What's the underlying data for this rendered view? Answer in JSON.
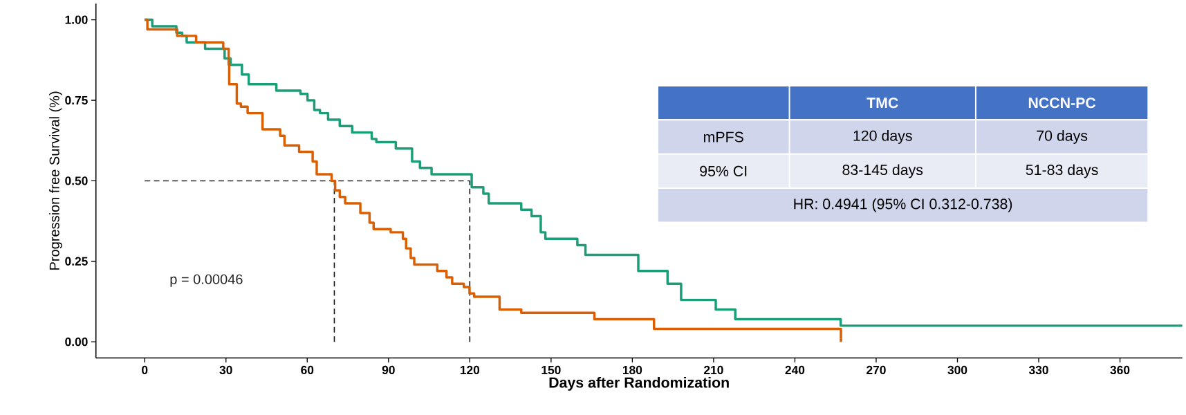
{
  "chart_data": {
    "type": "step",
    "xlabel": "Days after Randomization",
    "ylabel": "Progression free Survival (%)",
    "series": [
      {
        "color": "#1b9e77",
        "x": [
          0,
          2.8,
          11.7,
          13.8,
          15.5,
          22.3,
          29.5,
          31.7,
          35.9,
          38.4,
          48.6,
          57.5,
          60.1,
          62.6,
          64.7,
          67.7,
          72,
          76.6,
          83.8,
          85.5,
          92.7,
          98.7,
          101.6,
          105.9,
          120.7,
          125,
          127,
          139,
          142.8,
          146.2,
          147.9,
          159.7,
          162.7,
          182.2,
          193,
          198,
          210.8,
          218,
          256.9,
          383
        ],
        "values": [
          1.0,
          0.98,
          0.96,
          0.95,
          0.93,
          0.91,
          0.88,
          0.86,
          0.83,
          0.8,
          0.78,
          0.77,
          0.75,
          0.72,
          0.71,
          0.69,
          0.67,
          0.65,
          0.63,
          0.62,
          0.6,
          0.56,
          0.54,
          0.52,
          0.48,
          0.46,
          0.43,
          0.41,
          0.39,
          0.34,
          0.32,
          0.3,
          0.27,
          0.22,
          0.18,
          0.13,
          0.1,
          0.07,
          0.05,
          0.05
        ]
      },
      {
        "color": "#d95f02",
        "x": [
          0,
          1,
          12,
          19,
          29,
          31,
          31.2,
          34,
          35.5,
          38,
          43.5,
          50,
          51.6,
          57,
          62,
          63.5,
          69,
          70.3,
          72,
          74,
          79.6,
          83,
          84.5,
          90.8,
          95.3,
          96.5,
          98.2,
          99.5,
          108,
          111.4,
          113.5,
          117.8,
          119.9,
          121.6,
          131,
          139,
          166,
          188,
          257
        ],
        "values": [
          1.0,
          0.97,
          0.95,
          0.93,
          0.91,
          0.86,
          0.8,
          0.74,
          0.73,
          0.71,
          0.66,
          0.64,
          0.61,
          0.59,
          0.56,
          0.52,
          0.5,
          0.47,
          0.45,
          0.43,
          0.4,
          0.37,
          0.35,
          0.34,
          0.32,
          0.29,
          0.26,
          0.24,
          0.22,
          0.2,
          0.18,
          0.17,
          0.15,
          0.14,
          0.1,
          0.09,
          0.07,
          0.04,
          0
        ]
      }
    ],
    "xlim": [
      -18,
      383
    ],
    "xticks": [
      0,
      30,
      60,
      90,
      120,
      150,
      180,
      210,
      240,
      270,
      300,
      330,
      360
    ],
    "ylim": [
      -0.05,
      1.05
    ],
    "yticks": [
      {
        "value": 0,
        "label": "0.00"
      },
      {
        "value": 0.25,
        "label": "0.25"
      },
      {
        "value": 0.5,
        "label": "0.50"
      },
      {
        "value": 0.75,
        "label": "0.75"
      },
      {
        "value": 1,
        "label": "1.00"
      }
    ],
    "ref_lines": [
      {
        "axis": "y",
        "value": 0.5,
        "color": "#444444",
        "line_style": "dashed"
      },
      {
        "axis": "x",
        "value": 70,
        "color": "#111111",
        "line_style": "dashed"
      },
      {
        "axis": "x",
        "value": 120,
        "color": "#111111",
        "line_style": "dashed"
      }
    ],
    "annotations": [
      "p = 0.00046",
      "TMC",
      "NCCN-PC",
      "mPFS",
      "120 days",
      "70 days",
      "95% CI",
      "83-145 days",
      "51-83 days",
      "HR: 0.4941 (95% CI 0.312-0.738)"
    ],
    "grid": false,
    "legend": false
  }
}
